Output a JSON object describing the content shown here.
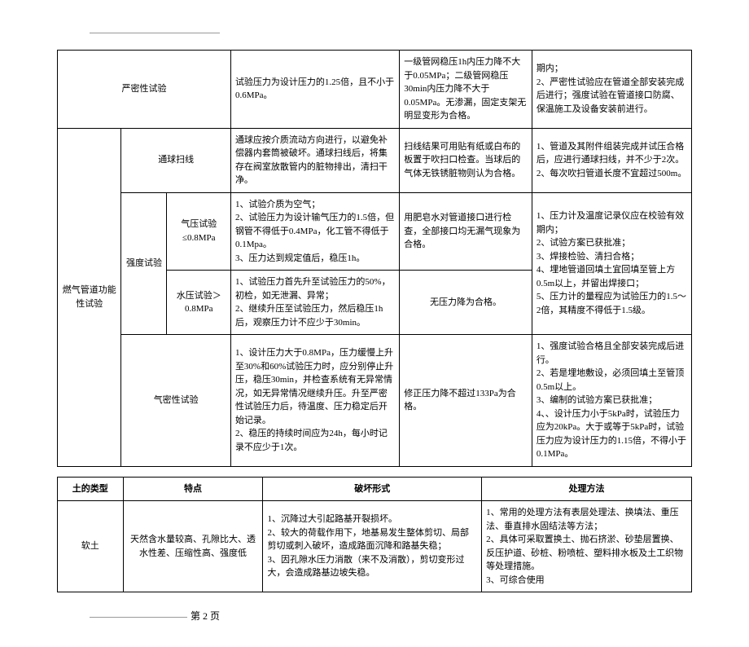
{
  "table1": {
    "r1": {
      "c3": "严密性试验",
      "c4": "试验压力为设计压力的1.25倍，且不小于0.6MPa。",
      "c5": "一级管网稳压1h内压力降不大于0.05MPa；二级管网稳压30min内压力降不大于0.05MPa。无渗漏，固定支架无明显变形为合格。",
      "c6": "期内；\n2、严密性试验应在管道全部安装完成后进行；强度试验在管道接口防腐、保温施工及设备安装前进行。"
    },
    "r2": {
      "c1": "燃气管道功能性试验",
      "c3": "通球扫线",
      "c4": "通球应按介质流动方向进行，以避免补偿器内套筒被破坏。通球扫线后，将集存在阀室放散管内的脏物排出，清扫干净。",
      "c5": "扫线结果可用贴有纸或白布的板置于吹扫口检查。当球后的气体无铁锈脏物则认为合格。",
      "c6": "1、管道及其附件组装完成并试压合格后，应进行通球扫线，并不少于2次。\n2、每次吹扫管道长度不宜超过500m。"
    },
    "r3": {
      "c2": "强度试验",
      "c3a": "气压试验≤0.8MPa",
      "c4a": "1、试验介质为空气；\n2、试验压力为设计输气压力的1.5倍，但钢管不得低于0.4MPa，化工管不得低于0.1Mpa。\n3、压力达到规定值后，稳压1h。",
      "c5a": "用肥皂水对管道接口进行检查，全部接口均无漏气现象为合格。",
      "c3b": "水压试验＞0.8MPa",
      "c4b": "1、试验压力首先升至试验压力的50%，初检，如无泄漏、异常；\n2、继续升压至试验压力，然后稳压1h后，观察压力计不应少于30min。",
      "c5b": "无压力降为合格。",
      "c6": "1、压力计及温度记录仪应在校验有效期内；\n2、试验方案已获批准；\n3、焊接检验、清扫合格；\n4、埋地管道回填土宜回填至管上方0.5m以上，并留出焊接口；\n5、压力计的量程应为试验压力的1.5～2倍，其精度不得低于1.5级。"
    },
    "r4": {
      "c3": "气密性试验",
      "c4": "1、设计压力大于0.8MPa，压力缓慢上升至30%和60%试验压力时，应分别停止升压，稳压30min，并检查系统有无异常情况，如无异常情况继续升压。升至严密性试验压力后，待温度、压力稳定后开始记录。\n2、稳压的持续时间应为24h，每小时记录不应少于1次。",
      "c5": "修正压力降不超过133Pa为合格。",
      "c6": "1、强度试验合格且全部安装完成后进行。\n2、若是埋地敷设，必须回填土至管顶0.5m以上。\n3、编制的试验方案已获批准；\n4、、设计压力小于5kPa时，试验压力应为20kPa。大于或等于5kPa时，试验压力应为设计压力的1.15倍，不得小于0.1MPa。"
    }
  },
  "table2": {
    "header": {
      "c1": "土的类型",
      "c2": "特点",
      "c3": "破坏形式",
      "c4": "处理方法"
    },
    "r1": {
      "c1": "软土",
      "c2": "天然含水量较高、孔隙比大、透水性差、压缩性高、强度低",
      "c3": "1、沉降过大引起路基开裂损坏。\n2、较大的荷载作用下，地基易发生整体剪切、局部剪切或刺入破坏，造成路面沉降和路基失稳；\n3、因孔隙水压力消散（来不及消散），剪切变形过大，会造成路基边坡失稳。",
      "c4": "1、常用的处理方法有表层处理法、换填法、重压法、垂直排水固结法等方法；\n2、具体可采取置换土、抛石挤淤、砂垫层置换、反压护道、砂桩、粉喷桩、塑料排水板及土工织物等处理措施。\n3、可综合使用"
    }
  },
  "footer": "第 2 页"
}
